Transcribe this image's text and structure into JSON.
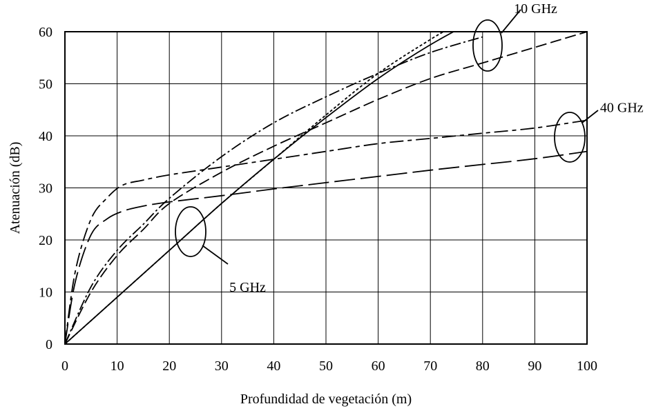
{
  "chart_data": {
    "type": "line",
    "title": "",
    "xlabel": "Profundidad de vegetación (m)",
    "ylabel": "Atenuación (dB)",
    "xlim": [
      0,
      100
    ],
    "ylim": [
      0,
      60
    ],
    "xticks": [
      0,
      10,
      20,
      30,
      40,
      50,
      60,
      70,
      80,
      90,
      100
    ],
    "yticks": [
      0,
      10,
      20,
      30,
      40,
      50,
      60
    ],
    "grid": true,
    "legend": "none",
    "series": [
      {
        "dash": "solid",
        "x": [
          0,
          10,
          20,
          30,
          40,
          50,
          60,
          70,
          80
        ],
        "y": [
          0,
          9,
          18,
          27,
          35.5,
          43.5,
          51,
          57.5,
          63
        ]
      },
      {
        "dash": "4,3",
        "x": [
          0,
          10,
          20,
          30,
          40,
          50,
          60,
          70,
          76
        ],
        "y": [
          0,
          9,
          18,
          27,
          35.5,
          44,
          52,
          58.5,
          62
        ]
      },
      {
        "dash": "16,4,3,4",
        "x": [
          0,
          5,
          10,
          15,
          20,
          30,
          40,
          50,
          60,
          70,
          80
        ],
        "y": [
          0,
          11,
          18,
          23,
          28,
          36,
          42.5,
          47.5,
          52,
          56,
          59
        ]
      },
      {
        "dash": "16,6",
        "x": [
          0,
          5,
          10,
          15,
          20,
          30,
          40,
          50,
          60,
          70,
          80,
          90,
          100
        ],
        "y": [
          0,
          10,
          17,
          22,
          27,
          33,
          38,
          42.5,
          47,
          51,
          54,
          57,
          60
        ]
      },
      {
        "dash": "20,6,6,6",
        "x": [
          0,
          2,
          5,
          8,
          11,
          15,
          20,
          30,
          40,
          50,
          60,
          70,
          80,
          90,
          100
        ],
        "y": [
          0,
          14,
          24,
          28,
          30.5,
          31.5,
          32.5,
          34,
          35.5,
          37,
          38.5,
          39.5,
          40.5,
          41.5,
          43
        ]
      },
      {
        "dash": "30,8",
        "x": [
          0,
          2,
          5,
          8,
          11,
          15,
          20,
          30,
          40,
          50,
          60,
          70,
          80,
          90,
          100
        ],
        "y": [
          0,
          12,
          21,
          24,
          25.5,
          26.5,
          27.3,
          28.5,
          29.8,
          31,
          32.2,
          33.4,
          34.5,
          35.6,
          37
        ]
      }
    ],
    "annotations": [
      {
        "text": "5 GHz",
        "x": 31.5,
        "y": 11
      },
      {
        "text": "10 GHz",
        "x": 86,
        "y": 64.5
      },
      {
        "text": "40 GHz",
        "x": 102.5,
        "y": 45.5
      }
    ]
  }
}
